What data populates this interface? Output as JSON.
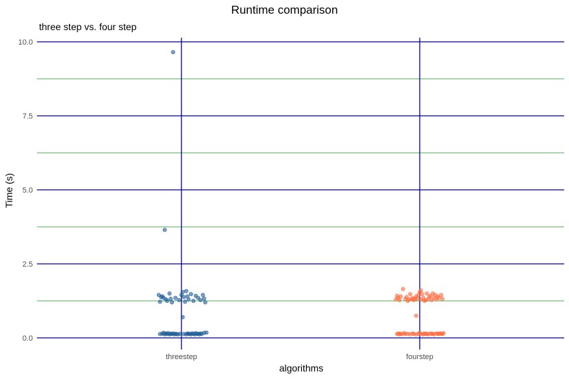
{
  "chart_data": {
    "type": "scatter",
    "title": "Runtime comparison",
    "subtitle": "three step vs. four step",
    "xlabel": "algorithms",
    "ylabel": "Time (s)",
    "categories": [
      "threestep",
      "fourstep"
    ],
    "ylim": [
      -0.4,
      10.15
    ],
    "yticks": [
      "0.0",
      "2.5",
      "5.0",
      "7.5",
      "10.0"
    ],
    "ytick_values": [
      0,
      2.5,
      5,
      7.5,
      10
    ],
    "minor_grid_values": [
      1.25,
      3.75,
      6.25,
      8.75
    ],
    "grid": true,
    "colors": {
      "major_grid": "#00008b",
      "minor_grid": "#228b22",
      "threestep": "#1f5e99",
      "fourstep": "#ff6a3d"
    },
    "series": [
      {
        "category": "threestep",
        "points": [
          {
            "x": -0.07,
            "y": 9.65
          },
          {
            "x": -0.14,
            "y": 3.65
          },
          {
            "x": 0.01,
            "y": 0.7
          },
          {
            "x": -0.19,
            "y": 1.45
          },
          {
            "x": -0.17,
            "y": 1.38
          },
          {
            "x": -0.16,
            "y": 1.4
          },
          {
            "x": -0.15,
            "y": 1.35
          },
          {
            "x": -0.13,
            "y": 1.3
          },
          {
            "x": -0.12,
            "y": 1.25
          },
          {
            "x": -0.1,
            "y": 1.5
          },
          {
            "x": -0.09,
            "y": 1.32
          },
          {
            "x": -0.08,
            "y": 1.2
          },
          {
            "x": -0.05,
            "y": 1.35
          },
          {
            "x": -0.02,
            "y": 1.28
          },
          {
            "x": 0.0,
            "y": 1.45
          },
          {
            "x": 0.01,
            "y": 1.55
          },
          {
            "x": 0.02,
            "y": 1.38
          },
          {
            "x": 0.03,
            "y": 1.22
          },
          {
            "x": 0.04,
            "y": 1.58
          },
          {
            "x": 0.05,
            "y": 1.4
          },
          {
            "x": 0.06,
            "y": 1.3
          },
          {
            "x": 0.08,
            "y": 1.48
          },
          {
            "x": 0.1,
            "y": 1.25
          },
          {
            "x": 0.12,
            "y": 1.42
          },
          {
            "x": 0.14,
            "y": 1.35
          },
          {
            "x": 0.16,
            "y": 1.28
          },
          {
            "x": 0.18,
            "y": 1.45
          },
          {
            "x": 0.2,
            "y": 1.2
          },
          {
            "x": -0.18,
            "y": 1.22
          },
          {
            "x": 0.19,
            "y": 1.33
          },
          {
            "x": -0.18,
            "y": 0.13
          },
          {
            "x": -0.16,
            "y": 0.14
          },
          {
            "x": -0.15,
            "y": 0.17
          },
          {
            "x": -0.14,
            "y": 0.12
          },
          {
            "x": -0.13,
            "y": 0.15
          },
          {
            "x": -0.12,
            "y": 0.13
          },
          {
            "x": -0.11,
            "y": 0.16
          },
          {
            "x": -0.1,
            "y": 0.12
          },
          {
            "x": -0.09,
            "y": 0.14
          },
          {
            "x": -0.08,
            "y": 0.13
          },
          {
            "x": -0.07,
            "y": 0.15
          },
          {
            "x": -0.06,
            "y": 0.12
          },
          {
            "x": -0.05,
            "y": 0.14
          },
          {
            "x": -0.04,
            "y": 0.13
          },
          {
            "x": -0.03,
            "y": 0.12
          },
          {
            "x": -0.01,
            "y": 0.14
          },
          {
            "x": 0.02,
            "y": 0.13
          },
          {
            "x": 0.04,
            "y": 0.12
          },
          {
            "x": 0.05,
            "y": 0.15
          },
          {
            "x": 0.06,
            "y": 0.13
          },
          {
            "x": 0.07,
            "y": 0.14
          },
          {
            "x": 0.08,
            "y": 0.12
          },
          {
            "x": 0.09,
            "y": 0.15
          },
          {
            "x": 0.1,
            "y": 0.14
          },
          {
            "x": 0.11,
            "y": 0.12
          },
          {
            "x": 0.12,
            "y": 0.16
          },
          {
            "x": 0.13,
            "y": 0.13
          },
          {
            "x": 0.14,
            "y": 0.14
          },
          {
            "x": 0.15,
            "y": 0.12
          },
          {
            "x": 0.16,
            "y": 0.15
          },
          {
            "x": 0.17,
            "y": 0.13
          },
          {
            "x": 0.19,
            "y": 0.17
          },
          {
            "x": 0.21,
            "y": 0.18
          }
        ]
      },
      {
        "category": "fourstep",
        "points": [
          {
            "x": -0.03,
            "y": 0.75
          },
          {
            "x": -0.2,
            "y": 1.3
          },
          {
            "x": -0.19,
            "y": 1.42
          },
          {
            "x": -0.18,
            "y": 1.35
          },
          {
            "x": -0.17,
            "y": 1.28
          },
          {
            "x": -0.16,
            "y": 1.4
          },
          {
            "x": -0.14,
            "y": 1.65
          },
          {
            "x": -0.12,
            "y": 1.32
          },
          {
            "x": -0.11,
            "y": 1.38
          },
          {
            "x": -0.1,
            "y": 1.25
          },
          {
            "x": -0.09,
            "y": 1.3
          },
          {
            "x": -0.08,
            "y": 1.48
          },
          {
            "x": -0.07,
            "y": 1.3
          },
          {
            "x": -0.06,
            "y": 1.35
          },
          {
            "x": -0.05,
            "y": 1.28
          },
          {
            "x": -0.04,
            "y": 1.32
          },
          {
            "x": -0.03,
            "y": 1.4
          },
          {
            "x": -0.02,
            "y": 1.33
          },
          {
            "x": -0.01,
            "y": 1.45
          },
          {
            "x": 0.0,
            "y": 1.55
          },
          {
            "x": 0.01,
            "y": 1.3
          },
          {
            "x": 0.02,
            "y": 1.48
          },
          {
            "x": 0.03,
            "y": 1.35
          },
          {
            "x": 0.04,
            "y": 1.25
          },
          {
            "x": 0.05,
            "y": 1.28
          },
          {
            "x": 0.06,
            "y": 1.5
          },
          {
            "x": 0.07,
            "y": 1.3
          },
          {
            "x": 0.08,
            "y": 1.38
          },
          {
            "x": 0.09,
            "y": 1.42
          },
          {
            "x": 0.1,
            "y": 1.28
          },
          {
            "x": 0.11,
            "y": 1.5
          },
          {
            "x": 0.12,
            "y": 1.35
          },
          {
            "x": 0.13,
            "y": 1.45
          },
          {
            "x": 0.14,
            "y": 1.3
          },
          {
            "x": 0.15,
            "y": 1.4
          },
          {
            "x": 0.16,
            "y": 1.35
          },
          {
            "x": 0.18,
            "y": 1.45
          },
          {
            "x": 0.19,
            "y": 1.32
          },
          {
            "x": 0.01,
            "y": 1.6
          },
          {
            "x": -0.19,
            "y": 0.13
          },
          {
            "x": -0.18,
            "y": 0.15
          },
          {
            "x": -0.17,
            "y": 0.12
          },
          {
            "x": -0.16,
            "y": 0.14
          },
          {
            "x": -0.15,
            "y": 0.13
          },
          {
            "x": -0.13,
            "y": 0.16
          },
          {
            "x": -0.12,
            "y": 0.13
          },
          {
            "x": -0.1,
            "y": 0.14
          },
          {
            "x": -0.08,
            "y": 0.12
          },
          {
            "x": -0.06,
            "y": 0.15
          },
          {
            "x": -0.05,
            "y": 0.13
          },
          {
            "x": -0.03,
            "y": 0.12
          },
          {
            "x": -0.01,
            "y": 0.14
          },
          {
            "x": 0.0,
            "y": 0.17
          },
          {
            "x": 0.02,
            "y": 0.13
          },
          {
            "x": 0.03,
            "y": 0.12
          },
          {
            "x": 0.04,
            "y": 0.15
          },
          {
            "x": 0.05,
            "y": 0.13
          },
          {
            "x": 0.06,
            "y": 0.14
          },
          {
            "x": 0.07,
            "y": 0.12
          },
          {
            "x": 0.09,
            "y": 0.15
          },
          {
            "x": 0.1,
            "y": 0.13
          },
          {
            "x": 0.11,
            "y": 0.14
          },
          {
            "x": 0.12,
            "y": 0.12
          },
          {
            "x": 0.14,
            "y": 0.15
          },
          {
            "x": 0.15,
            "y": 0.14
          },
          {
            "x": 0.16,
            "y": 0.13
          },
          {
            "x": 0.17,
            "y": 0.15
          },
          {
            "x": 0.18,
            "y": 0.14
          },
          {
            "x": 0.19,
            "y": 0.13
          },
          {
            "x": 0.2,
            "y": 0.16
          }
        ]
      }
    ]
  }
}
